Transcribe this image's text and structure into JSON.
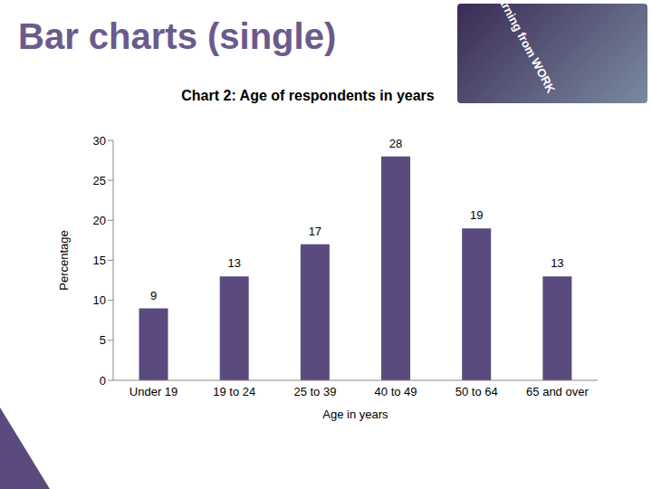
{
  "slide_title": "Bar charts (single)",
  "logo": "Learning from WORK",
  "chart_data": {
    "type": "bar",
    "title": "Chart 2: Age of respondents in years",
    "x_label": "Age in years",
    "y_label": "Percentage",
    "categories": [
      "Under 19",
      "19 to 24",
      "25 to 39",
      "40 to 49",
      "50 to 64",
      "65 and over"
    ],
    "values": [
      9,
      13,
      17,
      28,
      19,
      13
    ],
    "color": "#5b4a7e",
    "ylim": [
      0,
      30
    ],
    "yticks": [
      0,
      5,
      10,
      15,
      20,
      25,
      30
    ],
    "grid": false,
    "data_labels": true
  }
}
